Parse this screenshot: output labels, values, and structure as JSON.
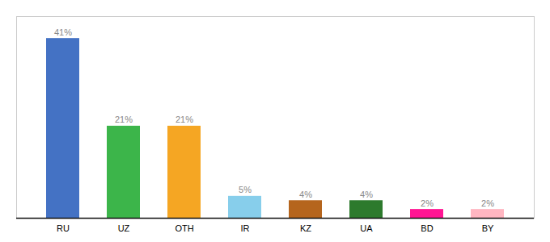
{
  "chart_data": {
    "type": "bar",
    "categories": [
      "RU",
      "UZ",
      "OTH",
      "IR",
      "KZ",
      "UA",
      "BD",
      "BY"
    ],
    "values": [
      41,
      21,
      21,
      5,
      4,
      4,
      2,
      2
    ],
    "value_labels": [
      "41%",
      "21%",
      "21%",
      "5%",
      "4%",
      "4%",
      "2%",
      "2%"
    ],
    "colors": [
      "#4472c4",
      "#3cb54a",
      "#f5a623",
      "#87ceeb",
      "#b5651d",
      "#2d7a2d",
      "#ff1493",
      "#ffb6c1"
    ],
    "ylim": [
      0,
      46
    ],
    "grid": false,
    "data_labels": true,
    "tick_labels": "x"
  }
}
